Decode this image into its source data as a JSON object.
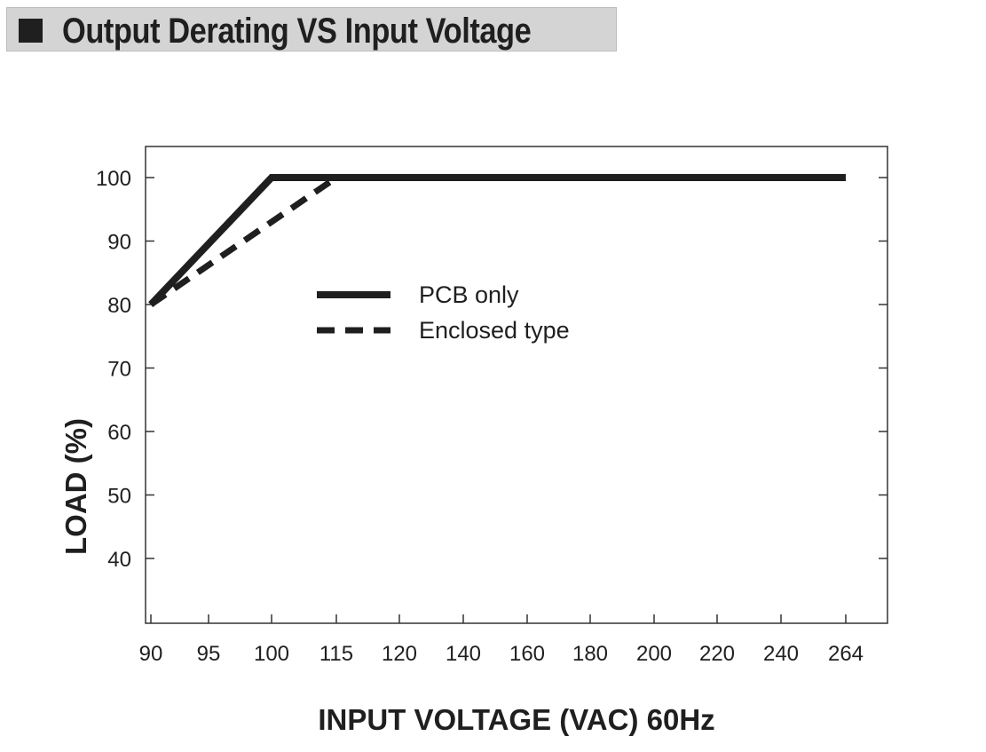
{
  "title": "Output Derating VS Input Voltage",
  "chart_data": {
    "type": "line",
    "title": "Output Derating VS Input Voltage",
    "xlabel": "INPUT VOLTAGE (VAC) 60Hz",
    "ylabel": "LOAD (%)",
    "x_scale": "categorical",
    "x_ticks": [
      "90",
      "95",
      "100",
      "115",
      "120",
      "140",
      "160",
      "180",
      "200",
      "220",
      "240",
      "264"
    ],
    "y_ticks": [
      40,
      50,
      60,
      70,
      80,
      90,
      100
    ],
    "ylim": [
      30,
      105
    ],
    "grid": false,
    "legend_position": "center",
    "series": [
      {
        "name": "PCB only",
        "style": "solid",
        "x": [
          90,
          100,
          264
        ],
        "y": [
          80,
          100,
          100
        ]
      },
      {
        "name": "Enclosed type",
        "style": "dashed",
        "x": [
          90,
          115,
          264
        ],
        "y": [
          80,
          100,
          100
        ]
      }
    ],
    "colors": {
      "line": "#1f1f1f",
      "frame": "#333333",
      "title_bg": "#d4d4d4"
    }
  }
}
